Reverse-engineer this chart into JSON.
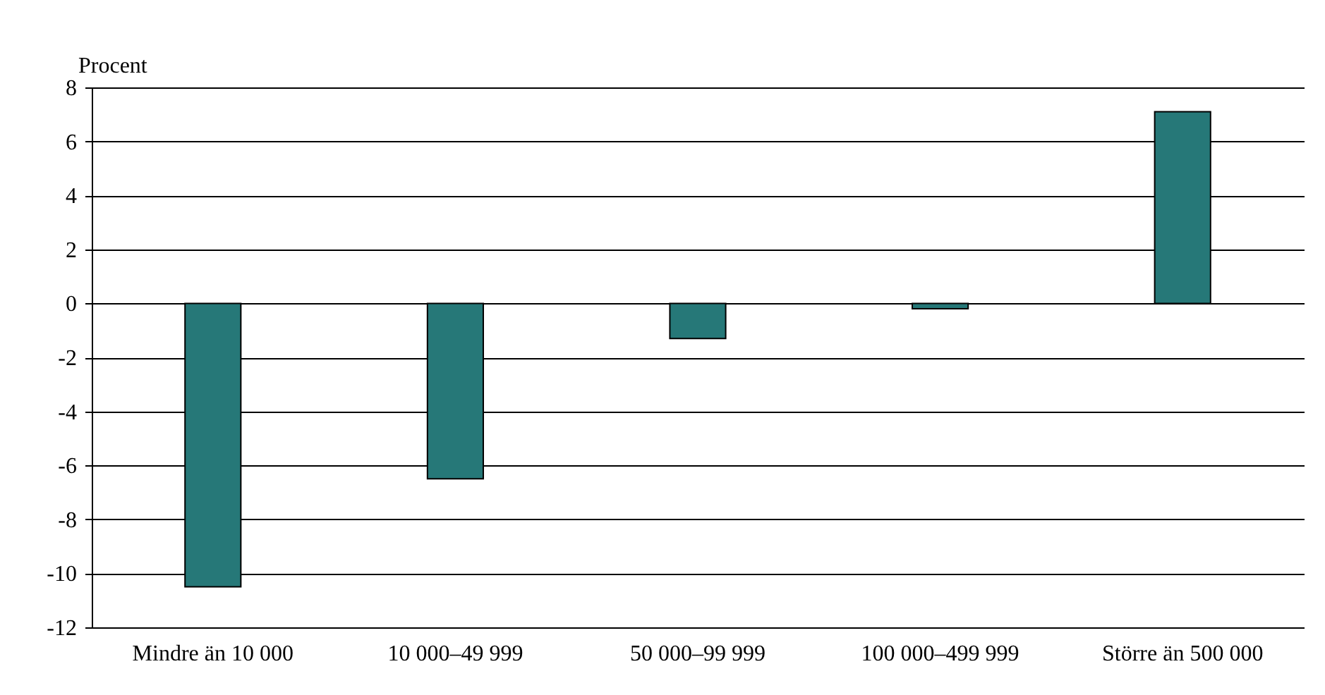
{
  "chart_data": {
    "type": "bar",
    "ylabel": "Procent",
    "categories": [
      "Mindre än 10 000",
      "10 000–49 999",
      "50 000–99 999",
      "100 000–499 999",
      "Större än 500 000"
    ],
    "values": [
      -10.5,
      -6.5,
      -1.3,
      -0.2,
      7.1
    ],
    "color": "#267878",
    "ylim": [
      -12,
      8
    ],
    "yticks": [
      -12,
      -10,
      -8,
      -6,
      -4,
      -2,
      0,
      2,
      4,
      6,
      8
    ],
    "grid": "y"
  }
}
